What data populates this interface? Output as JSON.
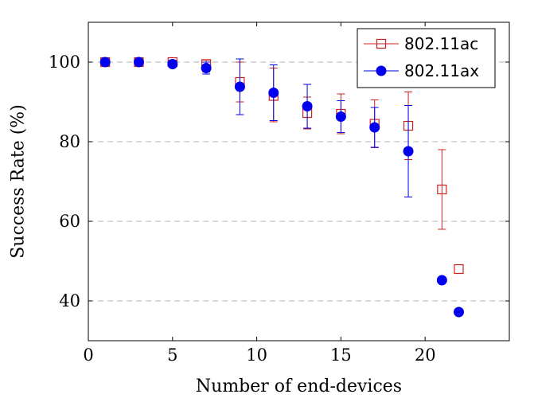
{
  "chart_data": {
    "type": "scatter",
    "title": "",
    "xlabel": "Number of end-devices",
    "ylabel": "Success Rate (%)",
    "xlim": [
      0,
      25
    ],
    "ylim": [
      30,
      110
    ],
    "xticks": [
      0,
      5,
      10,
      15,
      20
    ],
    "yticks": [
      40,
      60,
      80,
      100
    ],
    "grid": "horizontal-dashed",
    "legend_position": "top-right",
    "series": [
      {
        "name": "802.11ac",
        "color": "#cc2222",
        "marker": "open-square",
        "x": [
          1,
          3,
          5,
          7,
          9,
          11,
          13,
          15,
          17,
          19,
          21,
          22
        ],
        "y": [
          100,
          100,
          100,
          99.5,
          95,
          91.5,
          87.2,
          87,
          84.5,
          84,
          68,
          48
        ],
        "err_low": [
          0.5,
          0.5,
          0.5,
          2,
          5,
          6.5,
          4,
          5,
          6,
          8.5,
          10,
          null
        ],
        "err_high": [
          0.5,
          0.5,
          0.5,
          1,
          5,
          7,
          4,
          5,
          6,
          8.5,
          10,
          null
        ]
      },
      {
        "name": "802.11ax",
        "color": "#0000ee",
        "marker": "filled-circle",
        "x": [
          1,
          3,
          5,
          7,
          9,
          11,
          13,
          15,
          17,
          19,
          21,
          22
        ],
        "y": [
          100,
          100,
          99.5,
          98.5,
          93.8,
          92.3,
          88.9,
          86.3,
          83.6,
          77.6,
          45.2,
          37.2
        ],
        "err_low": [
          0.5,
          0.5,
          0.5,
          1.5,
          7,
          7,
          5.5,
          4,
          5,
          11.5,
          null,
          null
        ],
        "err_high": [
          0.5,
          0.5,
          0.5,
          1.5,
          7,
          7,
          5.5,
          4,
          5,
          11.5,
          null,
          null
        ]
      }
    ]
  }
}
